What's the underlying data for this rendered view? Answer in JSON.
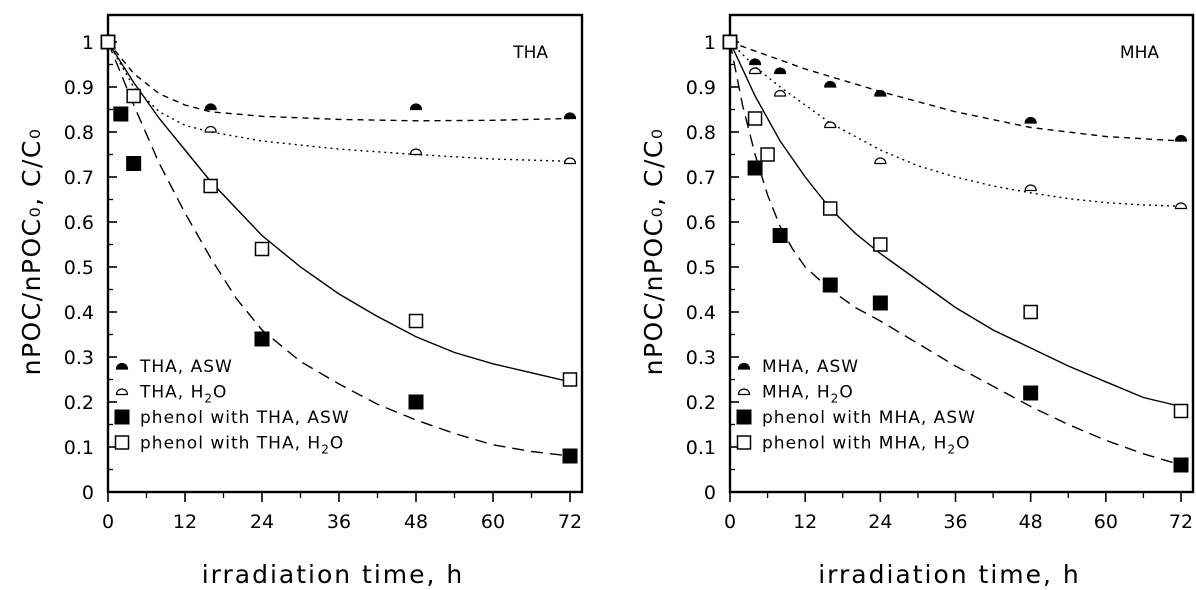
{
  "chart_data": [
    {
      "type": "scatter",
      "panel_label": "THA",
      "xlabel": "irradiation time, h",
      "ylabel": "nPOC/nPOC₀, C/C₀",
      "xlim": [
        0,
        72
      ],
      "ylim": [
        0,
        1
      ],
      "xticks": [
        "0",
        "12",
        "24",
        "36",
        "48",
        "60",
        "72"
      ],
      "yticks": [
        "0",
        "0.1",
        "0.2",
        "0.3",
        "0.4",
        "0.5",
        "0.6",
        "0.7",
        "0.8",
        "0.9",
        "1"
      ],
      "grid": false,
      "legend_position": "bottom-left",
      "series": [
        {
          "name": "THA, ASW",
          "label_main": "THA, ASW",
          "label_sub": "",
          "label_tail": "",
          "marker": "half-filled-top",
          "line": "short-dash",
          "points": [
            [
              0,
              1.0
            ],
            [
              16,
              0.85
            ],
            [
              48,
              0.85
            ],
            [
              72,
              0.83
            ]
          ],
          "curve": [
            [
              0,
              1.0
            ],
            [
              4,
              0.93
            ],
            [
              8,
              0.885
            ],
            [
              12,
              0.86
            ],
            [
              16,
              0.845
            ],
            [
              24,
              0.835
            ],
            [
              36,
              0.828
            ],
            [
              48,
              0.825
            ],
            [
              60,
              0.826
            ],
            [
              72,
              0.83
            ]
          ]
        },
        {
          "name": "THA, H2O",
          "label_main": "THA, H",
          "label_sub": "2",
          "label_tail": "O",
          "marker": "half-open-top",
          "line": "dotted",
          "points": [
            [
              0,
              1.0
            ],
            [
              16,
              0.8
            ],
            [
              48,
              0.75
            ],
            [
              72,
              0.73
            ]
          ],
          "curve": [
            [
              0,
              1.0
            ],
            [
              4,
              0.9
            ],
            [
              8,
              0.845
            ],
            [
              12,
              0.815
            ],
            [
              16,
              0.8
            ],
            [
              24,
              0.78
            ],
            [
              36,
              0.762
            ],
            [
              48,
              0.75
            ],
            [
              60,
              0.74
            ],
            [
              72,
              0.735
            ]
          ]
        },
        {
          "name": "phenol with THA, ASW",
          "label_main": "phenol with THA, ASW",
          "label_sub": "",
          "label_tail": "",
          "marker": "filled-square",
          "line": "long-dash",
          "points": [
            [
              0,
              1.0
            ],
            [
              2,
              0.84
            ],
            [
              4,
              0.73
            ],
            [
              24,
              0.34
            ],
            [
              48,
              0.2
            ],
            [
              72,
              0.08
            ]
          ],
          "curve": [
            [
              0,
              1.0
            ],
            [
              4,
              0.86
            ],
            [
              8,
              0.73
            ],
            [
              12,
              0.62
            ],
            [
              16,
              0.52
            ],
            [
              20,
              0.43
            ],
            [
              24,
              0.36
            ],
            [
              30,
              0.29
            ],
            [
              36,
              0.24
            ],
            [
              42,
              0.195
            ],
            [
              48,
              0.16
            ],
            [
              54,
              0.13
            ],
            [
              60,
              0.105
            ],
            [
              66,
              0.09
            ],
            [
              72,
              0.08
            ]
          ]
        },
        {
          "name": "phenol with THA, H2O",
          "label_main": "phenol with THA, H",
          "label_sub": "2",
          "label_tail": "O",
          "marker": "open-square",
          "line": "solid",
          "points": [
            [
              0,
              1.0
            ],
            [
              4,
              0.88
            ],
            [
              16,
              0.68
            ],
            [
              24,
              0.54
            ],
            [
              48,
              0.38
            ],
            [
              72,
              0.25
            ]
          ],
          "curve": [
            [
              0,
              1.0
            ],
            [
              4,
              0.91
            ],
            [
              8,
              0.83
            ],
            [
              12,
              0.76
            ],
            [
              16,
              0.69
            ],
            [
              20,
              0.63
            ],
            [
              24,
              0.57
            ],
            [
              30,
              0.5
            ],
            [
              36,
              0.44
            ],
            [
              42,
              0.39
            ],
            [
              48,
              0.345
            ],
            [
              54,
              0.31
            ],
            [
              60,
              0.285
            ],
            [
              66,
              0.265
            ],
            [
              72,
              0.245
            ]
          ]
        }
      ]
    },
    {
      "type": "scatter",
      "panel_label": "MHA",
      "xlabel": "irradiation time, h",
      "ylabel": "nPOC/nPOC₀, C/C₀",
      "xlim": [
        0,
        72
      ],
      "ylim": [
        0,
        1
      ],
      "xticks": [
        "0",
        "12",
        "24",
        "36",
        "48",
        "60",
        "72"
      ],
      "yticks": [
        "0",
        "0.1",
        "0.2",
        "0.3",
        "0.4",
        "0.5",
        "0.6",
        "0.7",
        "0.8",
        "0.9",
        "1"
      ],
      "grid": false,
      "legend_position": "bottom-left",
      "series": [
        {
          "name": "MHA, ASW",
          "label_main": "MHA, ASW",
          "label_sub": "",
          "label_tail": "",
          "marker": "half-filled-top",
          "line": "short-dash",
          "points": [
            [
              0,
              1.0
            ],
            [
              4,
              0.95
            ],
            [
              8,
              0.93
            ],
            [
              16,
              0.9
            ],
            [
              24,
              0.88
            ],
            [
              48,
              0.82
            ],
            [
              72,
              0.78
            ]
          ],
          "curve": [
            [
              0,
              1.0
            ],
            [
              6,
              0.97
            ],
            [
              12,
              0.94
            ],
            [
              18,
              0.915
            ],
            [
              24,
              0.89
            ],
            [
              36,
              0.845
            ],
            [
              48,
              0.81
            ],
            [
              60,
              0.79
            ],
            [
              72,
              0.78
            ]
          ]
        },
        {
          "name": "MHA, H2O",
          "label_main": "MHA, H",
          "label_sub": "2",
          "label_tail": "O",
          "marker": "half-open-top",
          "line": "dotted",
          "points": [
            [
              0,
              1.0
            ],
            [
              4,
              0.93
            ],
            [
              8,
              0.88
            ],
            [
              16,
              0.81
            ],
            [
              24,
              0.73
            ],
            [
              48,
              0.67
            ],
            [
              72,
              0.63
            ]
          ],
          "curve": [
            [
              0,
              1.0
            ],
            [
              4,
              0.945
            ],
            [
              8,
              0.9
            ],
            [
              12,
              0.86
            ],
            [
              16,
              0.82
            ],
            [
              20,
              0.79
            ],
            [
              24,
              0.76
            ],
            [
              30,
              0.725
            ],
            [
              36,
              0.7
            ],
            [
              42,
              0.68
            ],
            [
              48,
              0.665
            ],
            [
              54,
              0.652
            ],
            [
              60,
              0.643
            ],
            [
              66,
              0.638
            ],
            [
              72,
              0.635
            ]
          ]
        },
        {
          "name": "phenol with MHA, ASW",
          "label_main": "phenol with MHA, ASW",
          "label_sub": "",
          "label_tail": "",
          "marker": "filled-square",
          "line": "long-dash",
          "points": [
            [
              0,
              1.0
            ],
            [
              4,
              0.72
            ],
            [
              8,
              0.57
            ],
            [
              16,
              0.46
            ],
            [
              24,
              0.42
            ],
            [
              48,
              0.22
            ],
            [
              72,
              0.06
            ]
          ],
          "curve": [
            [
              0,
              1.0
            ],
            [
              2,
              0.86
            ],
            [
              4,
              0.75
            ],
            [
              6,
              0.66
            ],
            [
              8,
              0.59
            ],
            [
              10,
              0.54
            ],
            [
              12,
              0.5
            ],
            [
              16,
              0.45
            ],
            [
              20,
              0.41
            ],
            [
              24,
              0.38
            ],
            [
              30,
              0.33
            ],
            [
              36,
              0.28
            ],
            [
              42,
              0.235
            ],
            [
              48,
              0.19
            ],
            [
              54,
              0.15
            ],
            [
              60,
              0.115
            ],
            [
              66,
              0.085
            ],
            [
              72,
              0.06
            ]
          ]
        },
        {
          "name": "phenol with MHA, H2O",
          "label_main": "phenol with MHA, H",
          "label_sub": "2",
          "label_tail": "O",
          "marker": "open-square",
          "line": "solid",
          "points": [
            [
              0,
              1.0
            ],
            [
              4,
              0.83
            ],
            [
              6,
              0.75
            ],
            [
              16,
              0.63
            ],
            [
              24,
              0.55
            ],
            [
              48,
              0.4
            ],
            [
              72,
              0.18
            ]
          ],
          "curve": [
            [
              0,
              1.0
            ],
            [
              4,
              0.88
            ],
            [
              8,
              0.78
            ],
            [
              12,
              0.7
            ],
            [
              16,
              0.63
            ],
            [
              20,
              0.575
            ],
            [
              24,
              0.53
            ],
            [
              30,
              0.47
            ],
            [
              36,
              0.41
            ],
            [
              42,
              0.36
            ],
            [
              48,
              0.32
            ],
            [
              54,
              0.28
            ],
            [
              60,
              0.245
            ],
            [
              66,
              0.21
            ],
            [
              72,
              0.19
            ]
          ]
        }
      ]
    }
  ]
}
